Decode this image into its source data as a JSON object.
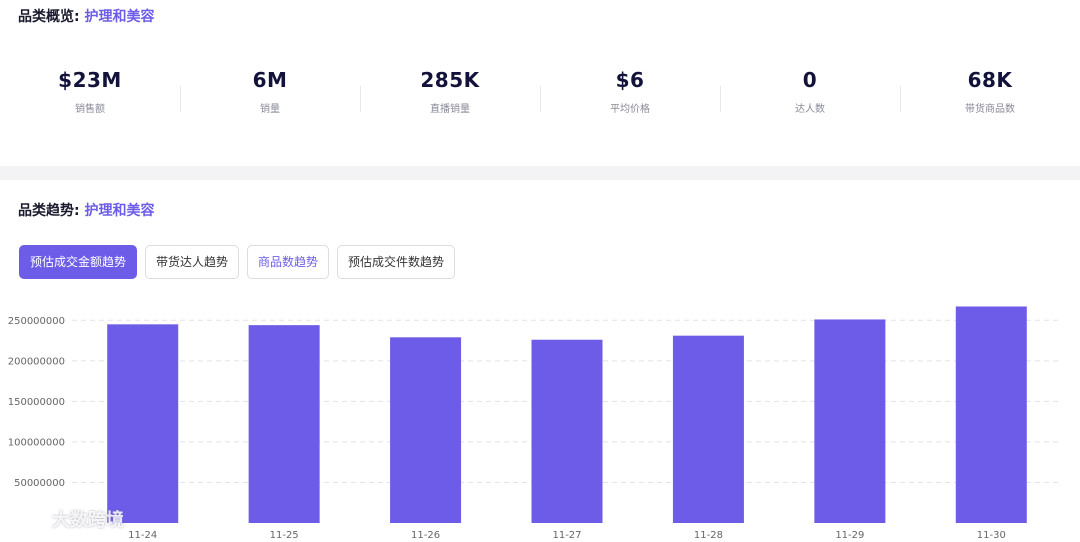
{
  "overview": {
    "title_prefix": "品类概览:",
    "category": "护理和美容",
    "stats": [
      {
        "value": "$23M",
        "label": "销售额"
      },
      {
        "value": "6M",
        "label": "销量"
      },
      {
        "value": "285K",
        "label": "直播销量"
      },
      {
        "value": "$6",
        "label": "平均价格"
      },
      {
        "value": "0",
        "label": "达人数"
      },
      {
        "value": "68K",
        "label": "带货商品数"
      }
    ]
  },
  "trend": {
    "title_prefix": "品类趋势:",
    "category": "护理和美容",
    "tabs": [
      {
        "label": "预估成交金额趋势",
        "state": "active"
      },
      {
        "label": "带货达人趋势",
        "state": "normal"
      },
      {
        "label": "商品数趋势",
        "state": "link"
      },
      {
        "label": "预估成交件数趋势",
        "state": "normal"
      }
    ]
  },
  "chart_data": {
    "type": "bar",
    "categories": [
      "11-24",
      "11-25",
      "11-26",
      "11-27",
      "11-28",
      "11-29",
      "11-30"
    ],
    "values": [
      245000000,
      244000000,
      229000000,
      226000000,
      231000000,
      251000000,
      267000000
    ],
    "yticks": [
      50000000,
      100000000,
      150000000,
      200000000,
      250000000
    ],
    "ylim": [
      0,
      275000000
    ],
    "grid": true,
    "bar_color": "#6c5ce7"
  },
  "watermark": {
    "text": "大数跨境"
  }
}
